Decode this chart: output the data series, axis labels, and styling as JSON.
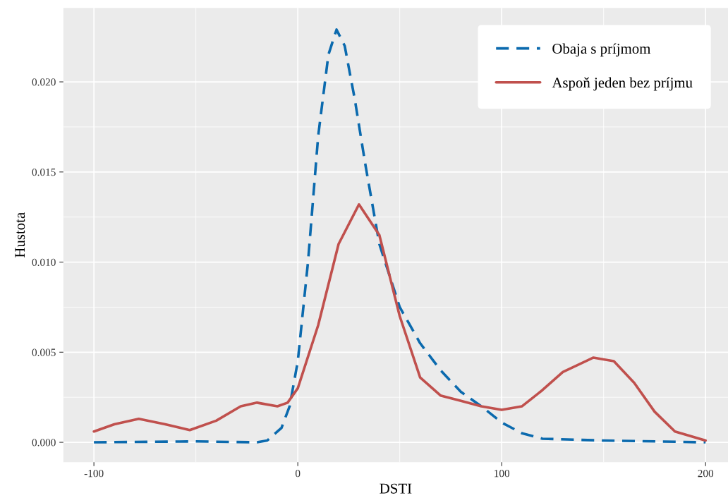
{
  "chart_data": {
    "type": "line",
    "xlabel": "DSTI",
    "ylabel": "Hustota",
    "xlim": [
      -115,
      211
    ],
    "ylim": [
      -0.0011,
      0.0241
    ],
    "xticks": [
      -100,
      0,
      100,
      200
    ],
    "yticks": [
      {
        "value": 0,
        "label": "0.000"
      },
      {
        "value": 0.005,
        "label": "0.005"
      },
      {
        "value": 0.01,
        "label": "0.010"
      },
      {
        "value": 0.015,
        "label": "0.015"
      },
      {
        "value": 0.02,
        "label": "0.020"
      }
    ],
    "grid": true,
    "legend": "top right",
    "series": [
      {
        "name": "Obaja s príjmom",
        "color": "#0b6aae",
        "line_style": "dashed",
        "x": [
          -100,
          -50,
          -20,
          -15,
          -8,
          -4,
          0,
          5,
          10,
          15,
          19,
          23,
          28,
          33,
          40,
          50,
          60,
          70,
          80,
          90,
          100,
          110,
          120,
          150,
          200
        ],
        "values": [
          0,
          5e-05,
          0,
          0.0001,
          0.0008,
          0.002,
          0.0045,
          0.01,
          0.017,
          0.0215,
          0.0229,
          0.022,
          0.019,
          0.0155,
          0.011,
          0.0075,
          0.0055,
          0.004,
          0.0028,
          0.002,
          0.0011,
          0.0005,
          0.0002,
          0.0001,
          0
        ]
      },
      {
        "name": "Aspoň jeden bez príjmu",
        "color": "#c0504d",
        "line_style": "solid",
        "x": [
          -100,
          -90,
          -78,
          -65,
          -53,
          -40,
          -28,
          -20,
          -10,
          -5,
          0,
          10,
          20,
          30,
          40,
          50,
          60,
          70,
          80,
          90,
          100,
          110,
          120,
          130,
          145,
          155,
          165,
          175,
          185,
          200
        ],
        "values": [
          0.0006,
          0.001,
          0.0013,
          0.001,
          0.00068,
          0.0012,
          0.002,
          0.0022,
          0.002,
          0.0022,
          0.003,
          0.0065,
          0.011,
          0.0132,
          0.0115,
          0.007,
          0.0036,
          0.0026,
          0.0023,
          0.002,
          0.0018,
          0.002,
          0.0029,
          0.0039,
          0.0047,
          0.0045,
          0.0033,
          0.0017,
          0.0006,
          0.0001
        ]
      }
    ]
  }
}
